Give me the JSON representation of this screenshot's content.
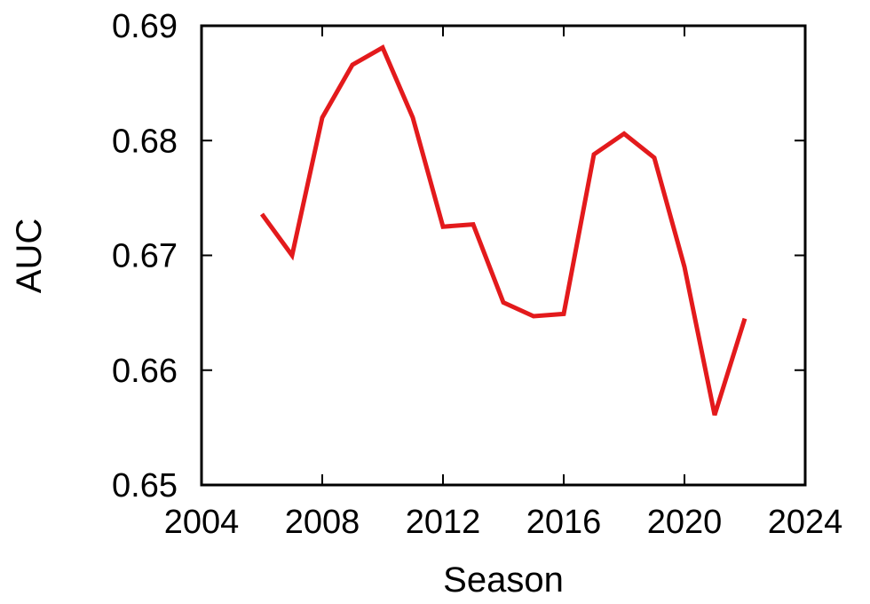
{
  "chart_data": {
    "type": "line",
    "xlabel": "Season",
    "ylabel": "AUC",
    "xlim": [
      2004,
      2024
    ],
    "ylim": [
      0.65,
      0.69
    ],
    "xticks": [
      2004,
      2008,
      2012,
      2016,
      2020,
      2024
    ],
    "xtick_labels": [
      "2004",
      "2008",
      "2012",
      "2016",
      "2020",
      "2024"
    ],
    "yticks": [
      0.65,
      0.66,
      0.67,
      0.68,
      0.69
    ],
    "ytick_labels": [
      "0.65",
      "0.66",
      "0.67",
      "0.68",
      "0.69"
    ],
    "grid": false,
    "legend": "none",
    "series": [
      {
        "color": "#e31a1c",
        "x": [
          2006,
          2007,
          2008,
          2009,
          2010,
          2011,
          2012,
          2013,
          2014,
          2015,
          2016,
          2017,
          2018,
          2019,
          2020,
          2021,
          2022
        ],
        "y": [
          0.6736,
          0.67,
          0.682,
          0.6866,
          0.6881,
          0.682,
          0.6725,
          0.6727,
          0.6659,
          0.6647,
          0.6649,
          0.6788,
          0.6806,
          0.6785,
          0.669,
          0.6561,
          0.6645
        ]
      }
    ]
  }
}
